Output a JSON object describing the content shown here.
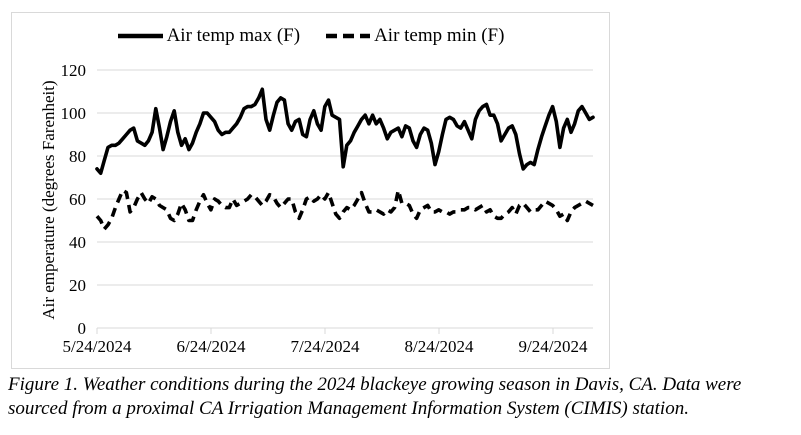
{
  "legend": {
    "max_label": "Air temp max (F)",
    "min_label": "Air temp min (F)"
  },
  "caption": {
    "line1": "Figure 1. Weather conditions during the 2024 blackeye growing season in Davis, CA. Data were",
    "line2": "sourced from a proximal CA Irrigation Management Information System (CIMIS) station."
  },
  "chart_data": {
    "type": "line",
    "title": "",
    "xlabel": "",
    "ylabel": "Air emperature (degrees Farenheit)",
    "ylim": [
      0,
      120
    ],
    "y_ticks": [
      0,
      20,
      40,
      60,
      80,
      100,
      120
    ],
    "x_tick_labels": [
      "5/24/2024",
      "6/24/2024",
      "7/24/2024",
      "8/24/2024",
      "9/24/2024"
    ],
    "x_start_date": "5/24/2024",
    "x_frequency": "daily",
    "grid": true,
    "legend_position": "top-center",
    "colors": {
      "line": "#000000",
      "grid": "#d9d9d9",
      "background": "#ffffff"
    },
    "series": [
      {
        "name": "Air temp max (F)",
        "style": "solid",
        "values": [
          74,
          72,
          78,
          84,
          85,
          85,
          86,
          88,
          90,
          92,
          93,
          87,
          86,
          85,
          87,
          91,
          102,
          93,
          83,
          89,
          96,
          101,
          91,
          85,
          88,
          83,
          86,
          91,
          95,
          100,
          100,
          98,
          96,
          92,
          90,
          91,
          91,
          93,
          95,
          98,
          102,
          103,
          103,
          104,
          107,
          111,
          97,
          92,
          99,
          105,
          107,
          106,
          95,
          92,
          96,
          97,
          90,
          89,
          97,
          101,
          95,
          92,
          103,
          106,
          99,
          98,
          97,
          75,
          85,
          87,
          91,
          94,
          97,
          99,
          95,
          99,
          95,
          97,
          93,
          88,
          91,
          92,
          93,
          89,
          94,
          93,
          87,
          84,
          90,
          93,
          92,
          86,
          76,
          82,
          90,
          97,
          98,
          97,
          94,
          93,
          96,
          92,
          88,
          97,
          101,
          103,
          104,
          99,
          99,
          95,
          87,
          90,
          93,
          94,
          90,
          81,
          74,
          76,
          77,
          76,
          83,
          89,
          94,
          99,
          103,
          96,
          84,
          93,
          97,
          91,
          95,
          101,
          103,
          100,
          97,
          98
        ]
      },
      {
        "name": "Air temp min (F)",
        "style": "dashed",
        "values": [
          52,
          50,
          46,
          48,
          51,
          56,
          60,
          64,
          63,
          54,
          56,
          60,
          63,
          60,
          58,
          61,
          60,
          57,
          56,
          55,
          51,
          50,
          53,
          58,
          55,
          50,
          50,
          55,
          59,
          62,
          58,
          55,
          60,
          59,
          57,
          56,
          56,
          60,
          57,
          58,
          59,
          60,
          62,
          61,
          59,
          57,
          59,
          62,
          61,
          58,
          56,
          58,
          60,
          60,
          54,
          51,
          55,
          60,
          61,
          59,
          60,
          62,
          60,
          63,
          58,
          53,
          51,
          54,
          56,
          55,
          57,
          60,
          63,
          58,
          54,
          54,
          55,
          54,
          53,
          55,
          54,
          56,
          64,
          58,
          58,
          57,
          53,
          51,
          55,
          56,
          57,
          54,
          54,
          55,
          54,
          54,
          53,
          54,
          54,
          55,
          55,
          56,
          56,
          55,
          56,
          57,
          54,
          55,
          52,
          51,
          51,
          53,
          54,
          56,
          53,
          57,
          58,
          56,
          54,
          55,
          55,
          57,
          59,
          58,
          57,
          55,
          52,
          53,
          50,
          54,
          56,
          57,
          58,
          59,
          58,
          57
        ]
      }
    ]
  }
}
